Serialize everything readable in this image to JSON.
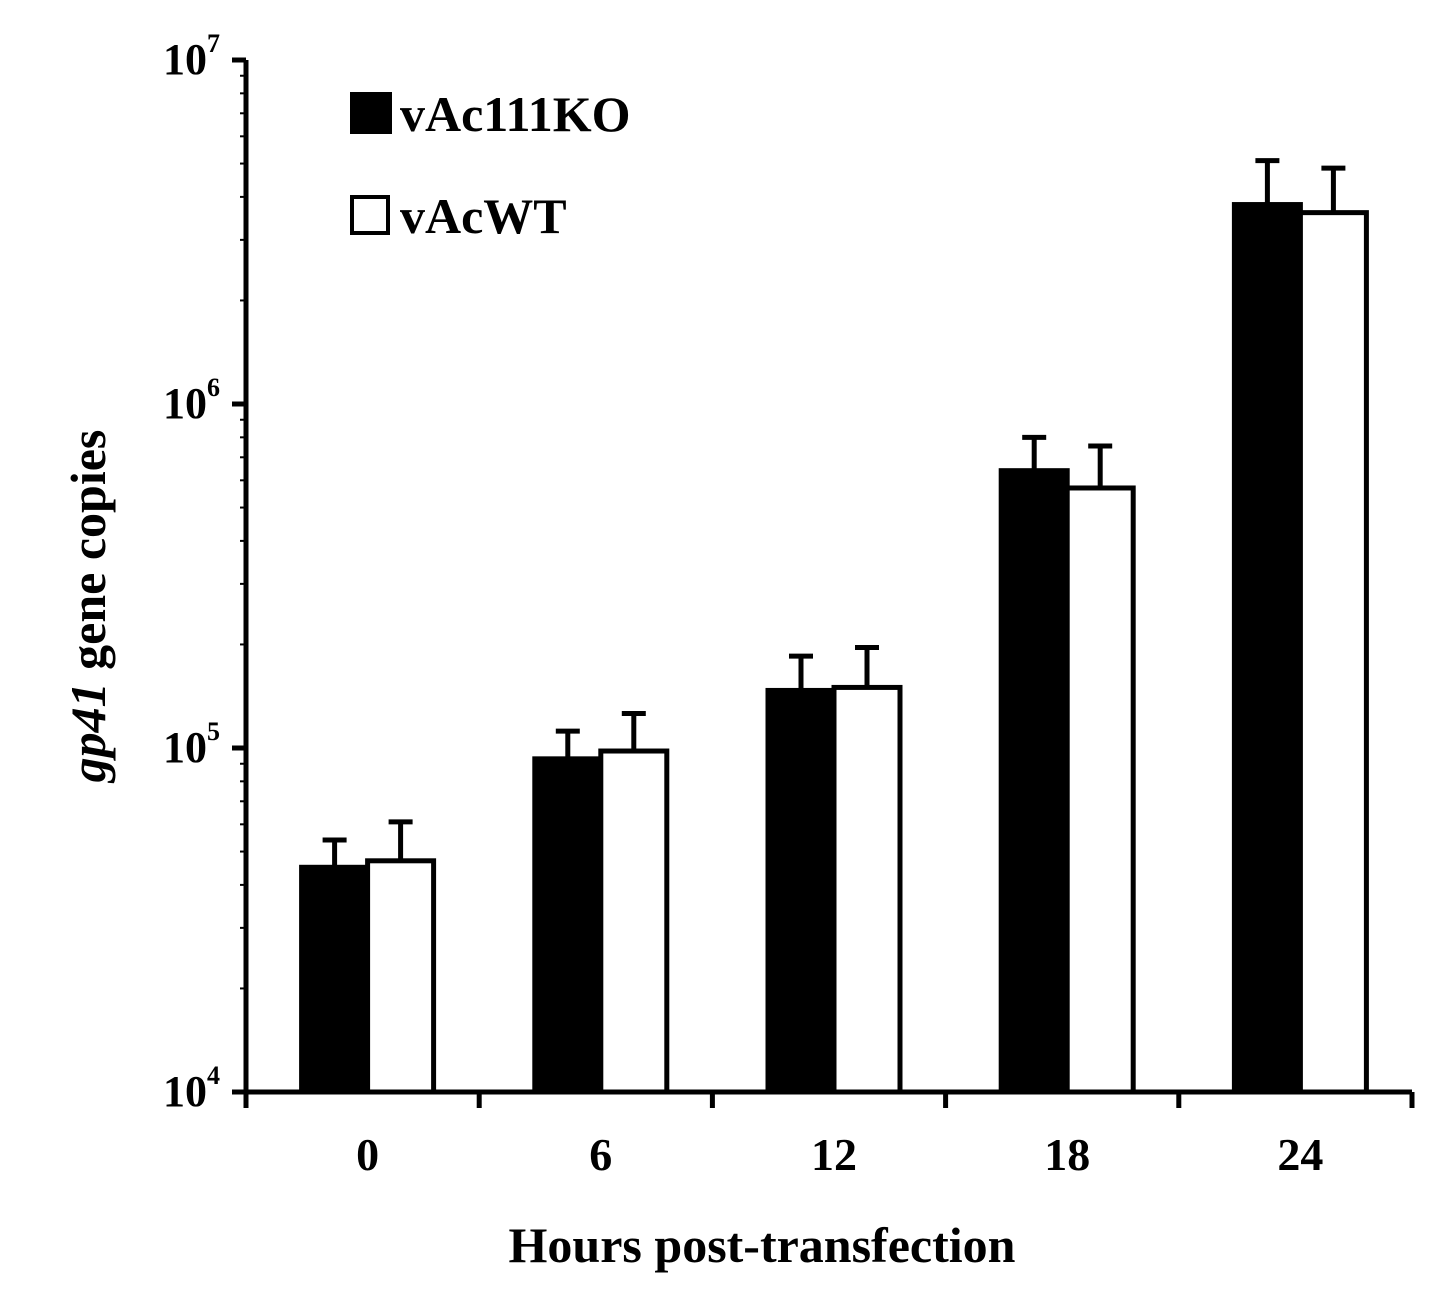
{
  "chart_data": {
    "type": "bar",
    "categories": [
      "0",
      "6",
      "12",
      "18",
      "24"
    ],
    "series": [
      {
        "name": "vAc111KO",
        "values": [
          45000,
          93000,
          147000,
          640000,
          3800000
        ],
        "error_upper": [
          54000,
          112000,
          185000,
          800000,
          5100000
        ],
        "color": "#000000"
      },
      {
        "name": "vAcWT",
        "values": [
          47000,
          98000,
          150000,
          570000,
          3600000
        ],
        "error_upper": [
          61000,
          126000,
          196000,
          755000,
          4850000
        ],
        "color": "#ffffff"
      }
    ],
    "xlabel": "Hours post-transfection",
    "ylabel_italic": "gp41",
    "ylabel_rest": " gene copies",
    "y_scale": "log",
    "ylim": [
      10000,
      10000000
    ],
    "y_ticks": [
      {
        "value": 10000,
        "base": "10",
        "exp": "4"
      },
      {
        "value": 100000,
        "base": "10",
        "exp": "5"
      },
      {
        "value": 1000000,
        "base": "10",
        "exp": "6"
      },
      {
        "value": 10000000,
        "base": "10",
        "exp": "7"
      }
    ],
    "grid": false,
    "legend_position": "top-left"
  }
}
